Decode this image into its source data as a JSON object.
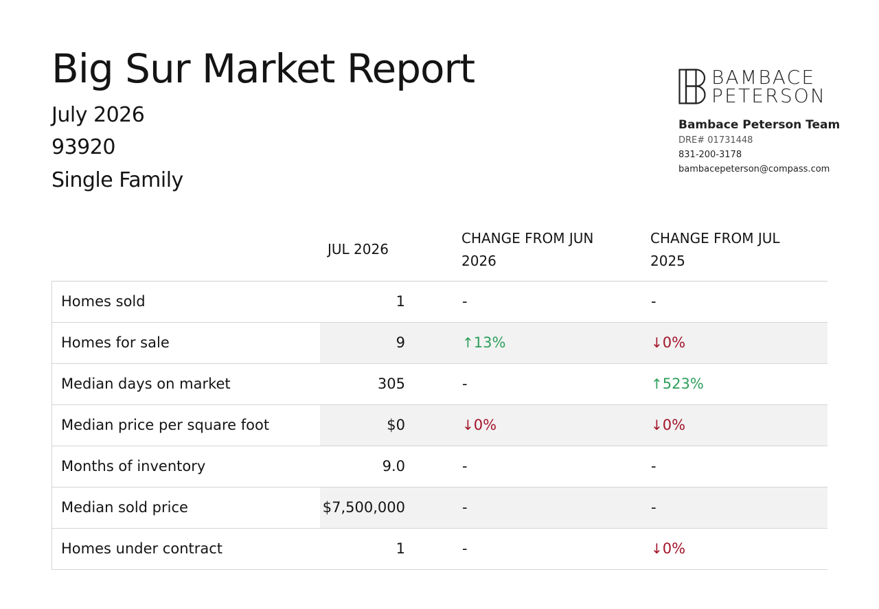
{
  "header": {
    "title": "Big Sur Market Report",
    "period": "July 2026",
    "zip": "93920",
    "property_type": "Single Family"
  },
  "brand": {
    "logo_line1": "BAMBACE",
    "logo_line2": "PETERSON",
    "team_name": "Bambace Peterson Team",
    "dre": "DRE# 01731448",
    "phone": "831-200-3178",
    "email": "bambacepeterson@compass.com"
  },
  "table": {
    "columns": {
      "month": "JUL 2026",
      "change_prev_month": "CHANGE FROM JUN 2026",
      "change_prev_year": "CHANGE FROM JUL 2025"
    },
    "rows": [
      {
        "label": "Homes sold",
        "value": "1",
        "ch1": "-",
        "ch1_dir": "none",
        "ch2": "-",
        "ch2_dir": "none"
      },
      {
        "label": "Homes for sale",
        "value": "9",
        "ch1": "13%",
        "ch1_dir": "up",
        "ch2": "0%",
        "ch2_dir": "down"
      },
      {
        "label": "Median days on market",
        "value": "305",
        "ch1": "-",
        "ch1_dir": "none",
        "ch2": "523%",
        "ch2_dir": "up"
      },
      {
        "label": "Median price per square foot",
        "value": "$0",
        "ch1": "0%",
        "ch1_dir": "down",
        "ch2": "0%",
        "ch2_dir": "down"
      },
      {
        "label": "Months of inventory",
        "value": "9.0",
        "ch1": "-",
        "ch1_dir": "none",
        "ch2": "-",
        "ch2_dir": "none"
      },
      {
        "label": "Median sold price",
        "value": "$7,500,000",
        "ch1": "-",
        "ch1_dir": "none",
        "ch2": "-",
        "ch2_dir": "none"
      },
      {
        "label": "Homes under contract",
        "value": "1",
        "ch1": "-",
        "ch1_dir": "none",
        "ch2": "0%",
        "ch2_dir": "down"
      }
    ]
  },
  "colors": {
    "up": "#2e9e5b",
    "down": "#a3142a",
    "row_shade": "#f2f2f2"
  },
  "icons": {
    "up": "arrow-up-icon",
    "down": "arrow-down-icon"
  }
}
